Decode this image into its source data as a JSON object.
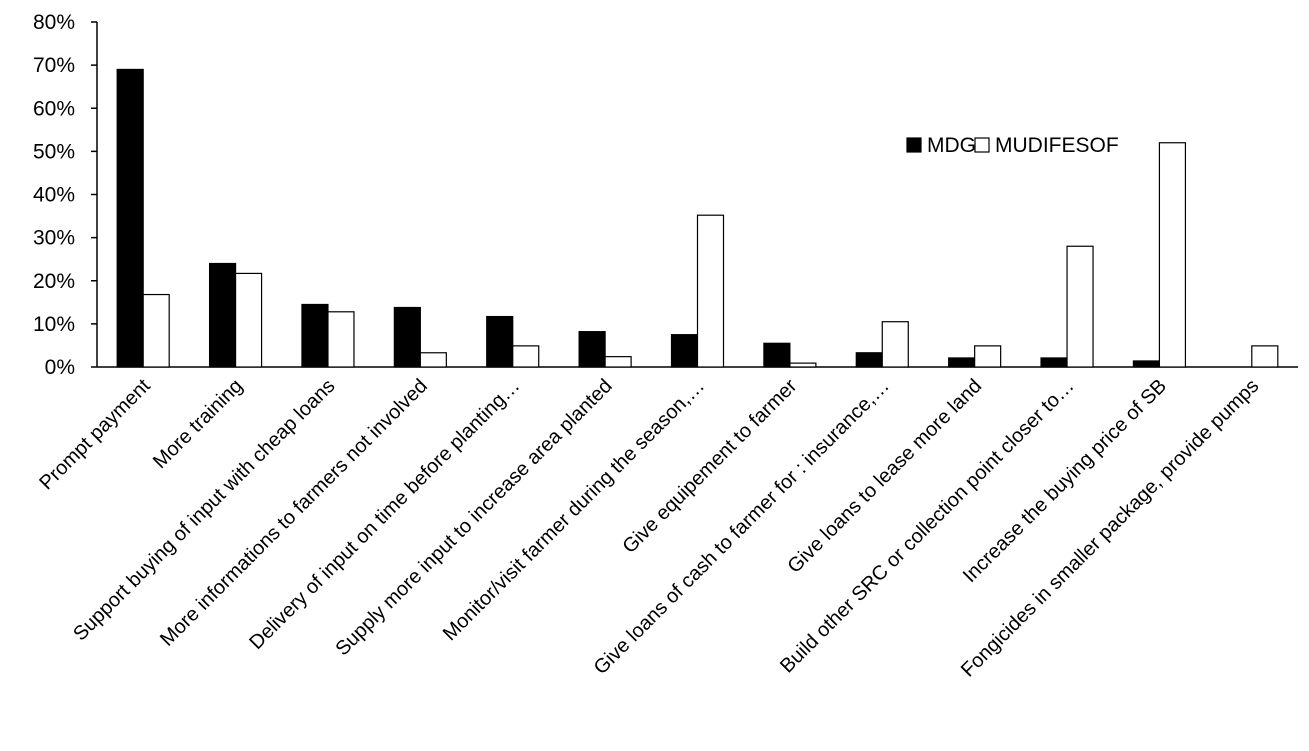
{
  "chart_data": {
    "type": "bar",
    "title": "",
    "xlabel": "",
    "ylabel": "",
    "ylim": [
      0,
      80
    ],
    "yticks": [
      "0%",
      "10%",
      "20%",
      "30%",
      "40%",
      "50%",
      "60%",
      "70%",
      "80%"
    ],
    "categories": [
      "Prompt payment",
      "More training",
      "Support buying of input with cheap loans",
      "More informations to farmers not involved",
      "Delivery of input on time before planting…",
      "Supply more input to increase area planted",
      "Monitor/visit farmer during the season,…",
      "Give equipement to farmer",
      "Give loans of cash to farmer for : insurance,…",
      "Give loans to lease more land",
      "Build other SRC or collection point closer to…",
      "Increase the buying price of SB",
      "Fongicides in smaller package, provide pumps"
    ],
    "series": [
      {
        "name": "MDG",
        "color": "#000000",
        "values": [
          69,
          24,
          14.5,
          13.8,
          11.7,
          8.2,
          7.5,
          5.5,
          3.3,
          2.1,
          2.1,
          1.4,
          0
        ]
      },
      {
        "name": "MUDIFESOF",
        "color": "#ffffff",
        "values": [
          16.8,
          21.7,
          12.8,
          3.3,
          4.9,
          2.4,
          35.2,
          0.9,
          10.5,
          4.9,
          28,
          52,
          4.9
        ]
      }
    ],
    "legend_position": "top-right",
    "grid": false
  }
}
